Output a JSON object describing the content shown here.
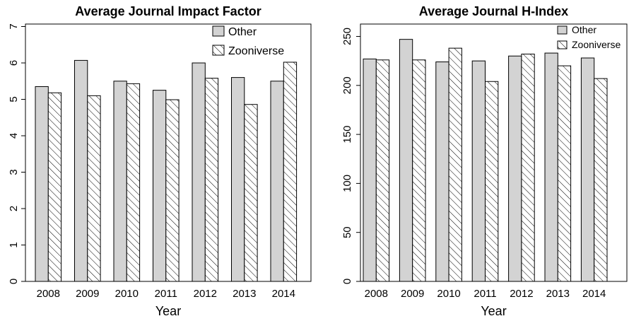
{
  "chart_data": [
    {
      "type": "bar",
      "title": "Average Journal Impact Factor",
      "xlabel": "Year",
      "ylabel": "",
      "categories": [
        "2008",
        "2009",
        "2010",
        "2011",
        "2012",
        "2013",
        "2014"
      ],
      "series": [
        {
          "name": "Other",
          "values": [
            5.35,
            6.07,
            5.5,
            5.25,
            6.0,
            5.6,
            5.5
          ],
          "color": "#d3d3d3",
          "pattern": "solid"
        },
        {
          "name": "Zooniverse",
          "values": [
            5.18,
            5.1,
            5.43,
            4.99,
            5.58,
            4.86,
            6.02
          ],
          "color": "#ffffff",
          "pattern": "hatch"
        }
      ],
      "ylim": [
        0,
        7
      ],
      "yticks": [
        0,
        1,
        2,
        3,
        4,
        5,
        6,
        7
      ],
      "legend_position": "top-right",
      "grid": false
    },
    {
      "type": "bar",
      "title": "Average Journal H-Index",
      "xlabel": "Year",
      "ylabel": "",
      "categories": [
        "2008",
        "2009",
        "2010",
        "2011",
        "2012",
        "2013",
        "2014"
      ],
      "series": [
        {
          "name": "Other",
          "values": [
            227,
            247,
            224,
            225,
            230,
            233,
            228
          ],
          "color": "#d3d3d3",
          "pattern": "solid"
        },
        {
          "name": "Zooniverse",
          "values": [
            226,
            226,
            238,
            204,
            232,
            220,
            207
          ],
          "color": "#ffffff",
          "pattern": "hatch"
        }
      ],
      "ylim": [
        0,
        255
      ],
      "yticks": [
        0,
        50,
        100,
        150,
        200,
        250
      ],
      "legend_position": "top-right",
      "grid": false
    }
  ]
}
